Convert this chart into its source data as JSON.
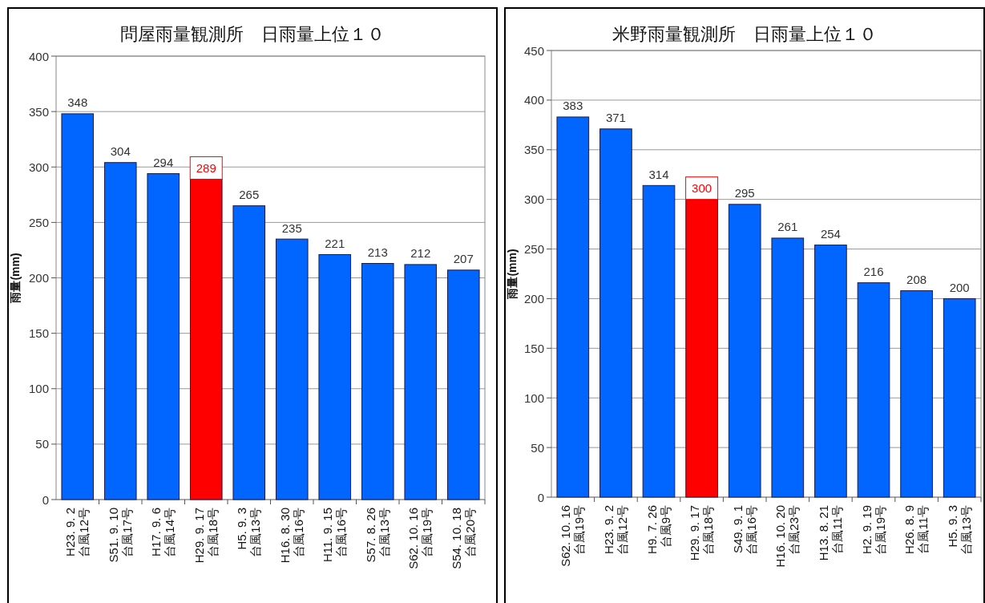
{
  "chart_data": [
    {
      "type": "bar",
      "title": "問屋雨量観測所　日雨量上位１０",
      "ylabel": "雨量(mm)",
      "categories": [
        "H23. 9. 2\n台風12号",
        "S51. 9. 10\n台風17号",
        "H17. 9. 6\n台風14号",
        "H29. 9. 17\n台風18号",
        "H5. 9. 3\n台風13号",
        "H16. 8. 30\n台風16号",
        "H11. 9. 15\n台風16号",
        "S57. 8. 26\n台風13号",
        "S62. 10. 16\n台風19号",
        "S54. 10. 18\n台風20号"
      ],
      "values": [
        348,
        304,
        294,
        289,
        265,
        235,
        221,
        213,
        212,
        207
      ],
      "colors": [
        "#0066ff",
        "#0066ff",
        "#0066ff",
        "#ff0000",
        "#0066ff",
        "#0066ff",
        "#0066ff",
        "#0066ff",
        "#0066ff",
        "#0066ff"
      ],
      "ylim": [
        0,
        400
      ],
      "yticks": [
        0,
        50,
        100,
        150,
        200,
        250,
        300,
        350,
        400
      ],
      "grid": "y",
      "data_labels": true
    },
    {
      "type": "bar",
      "title": "米野雨量観測所　日雨量上位１０",
      "ylabel": "雨量(mm)",
      "categories": [
        "S62. 10. 16\n台風19号",
        "H23. 9. 2\n台風12号",
        "H9. 7. 26\n台風9号",
        "H29. 9. 17\n台風18号",
        "S49. 9. 1\n台風16号",
        "H16. 10. 20\n台風23号",
        "H13. 8. 21\n台風11号",
        "H2. 9. 19\n台風19号",
        "H26. 8. 9\n台風11号",
        "H5. 9. 3\n台風13号"
      ],
      "values": [
        383,
        371,
        314,
        300,
        295,
        261,
        254,
        216,
        208,
        200
      ],
      "colors": [
        "#0066ff",
        "#0066ff",
        "#0066ff",
        "#ff0000",
        "#0066ff",
        "#0066ff",
        "#0066ff",
        "#0066ff",
        "#0066ff",
        "#0066ff"
      ],
      "ylim": [
        0,
        450
      ],
      "yticks": [
        0,
        50,
        100,
        150,
        200,
        250,
        300,
        350,
        400,
        450
      ],
      "grid": "y",
      "data_labels": true
    }
  ]
}
